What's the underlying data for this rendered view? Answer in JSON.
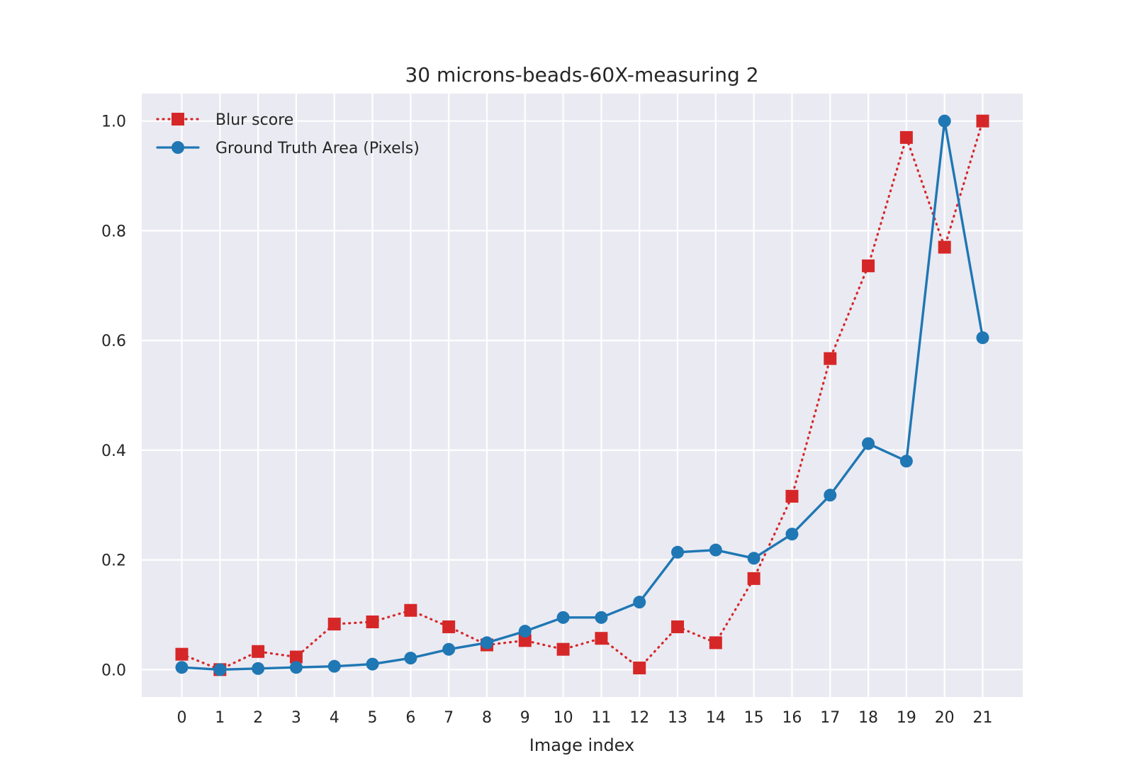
{
  "chart_data": {
    "type": "line",
    "title": "30 microns-beads-60X-measuring 2",
    "xlabel": "Image index",
    "ylabel": "",
    "x": [
      0,
      1,
      2,
      3,
      4,
      5,
      6,
      7,
      8,
      9,
      10,
      11,
      12,
      13,
      14,
      15,
      16,
      17,
      18,
      19,
      20,
      21
    ],
    "xticks": [
      "0",
      "1",
      "2",
      "3",
      "4",
      "5",
      "6",
      "7",
      "8",
      "9",
      "10",
      "11",
      "12",
      "13",
      "14",
      "15",
      "16",
      "17",
      "18",
      "19",
      "20",
      "21"
    ],
    "yticks": [
      "0.0",
      "0.2",
      "0.4",
      "0.6",
      "0.8",
      "1.0"
    ],
    "ylim": [
      -0.05,
      1.05
    ],
    "xlim": [
      -1.05,
      22.05
    ],
    "grid": true,
    "legend_position": "top-left",
    "background": "#eaeaf2",
    "series": [
      {
        "name": "Blur score",
        "color": "#d62728",
        "linestyle": "dotted",
        "marker": "square",
        "values": [
          0.028,
          0.0,
          0.033,
          0.023,
          0.083,
          0.087,
          0.108,
          0.078,
          0.045,
          0.053,
          0.037,
          0.057,
          0.003,
          0.078,
          0.049,
          0.166,
          0.316,
          0.567,
          0.736,
          0.97,
          0.77,
          1.0
        ]
      },
      {
        "name": "Ground Truth Area (Pixels)",
        "color": "#1f77b4",
        "linestyle": "solid",
        "marker": "circle",
        "values": [
          0.004,
          0.0,
          0.002,
          0.004,
          0.006,
          0.01,
          0.021,
          0.037,
          0.049,
          0.07,
          0.095,
          0.095,
          0.123,
          0.214,
          0.218,
          0.203,
          0.247,
          0.318,
          0.412,
          0.38,
          1.0,
          0.605
        ]
      }
    ]
  }
}
